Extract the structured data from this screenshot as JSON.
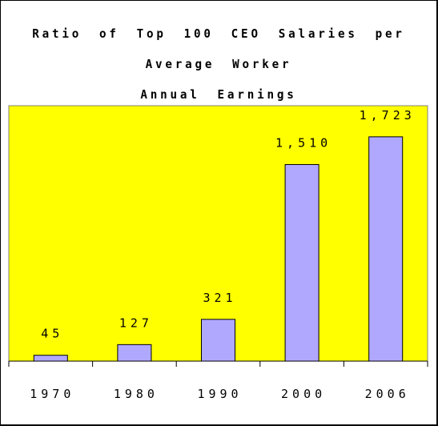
{
  "chart_data": {
    "type": "bar",
    "title": "Ratio of Top 100 CEO Salaries per Average Worker Annual Earnings",
    "title_lines": [
      "Ratio of Top 100 CEO Salaries per Average Worker",
      "Annual Earnings"
    ],
    "categories": [
      "1970",
      "1980",
      "1990",
      "2000",
      "2006"
    ],
    "values": [
      45,
      127,
      321,
      1510,
      1723
    ],
    "data_labels": [
      "45",
      "127",
      "321",
      "1,510",
      "1,723"
    ],
    "xlabel": "",
    "ylabel": "",
    "ylim": [
      0,
      2000
    ],
    "grid": false,
    "legend": "none",
    "colors": {
      "plot_background": "#ffff00",
      "bar_fill": "#b0a8ff",
      "bar_stroke": "#000000"
    }
  }
}
